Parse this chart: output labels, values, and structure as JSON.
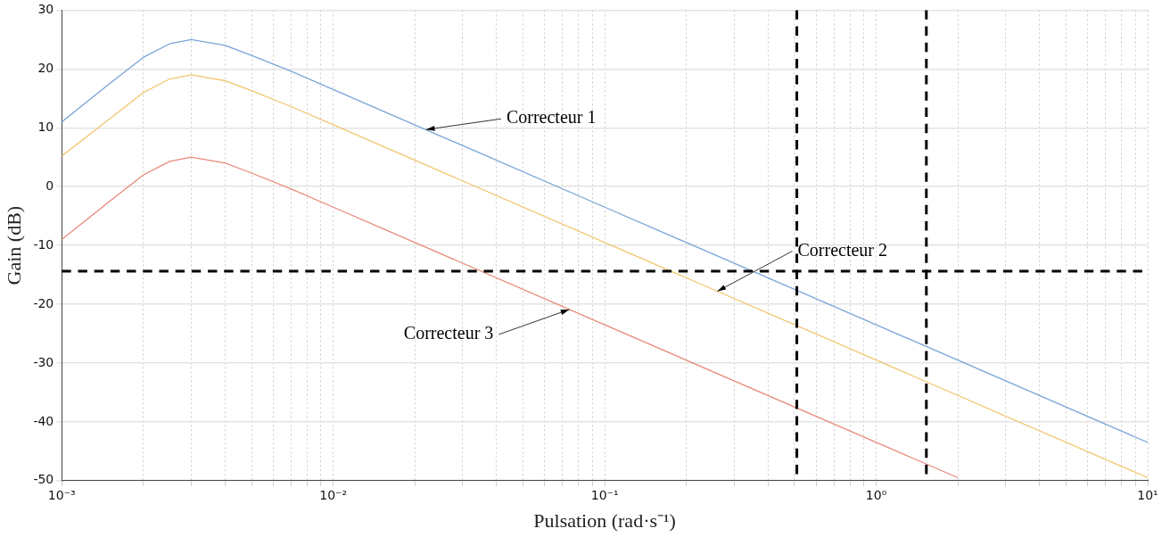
{
  "chart_data": {
    "type": "line",
    "xlabel": "Pulsation (rad·s⁻¹)",
    "ylabel": "Gain (dB)",
    "log": "x",
    "grid": true,
    "legend": false,
    "marker": "none",
    "line_style": "solid",
    "xlim": [
      0.001,
      10
    ],
    "ylim": [
      -50,
      30
    ],
    "xticks": [
      {
        "value": 0.001,
        "label": "10⁻³"
      },
      {
        "value": 0.002,
        "label": null
      },
      {
        "value": 0.003,
        "label": null
      },
      {
        "value": 0.004,
        "label": null
      },
      {
        "value": 0.005,
        "label": null
      },
      {
        "value": 0.006,
        "label": null
      },
      {
        "value": 0.007,
        "label": null
      },
      {
        "value": 0.008,
        "label": null
      },
      {
        "value": 0.009,
        "label": null
      },
      {
        "value": 0.01,
        "label": "10⁻²"
      },
      {
        "value": 0.02,
        "label": null
      },
      {
        "value": 0.03,
        "label": null
      },
      {
        "value": 0.04,
        "label": null
      },
      {
        "value": 0.05,
        "label": null
      },
      {
        "value": 0.06,
        "label": null
      },
      {
        "value": 0.07,
        "label": null
      },
      {
        "value": 0.08,
        "label": null
      },
      {
        "value": 0.09,
        "label": null
      },
      {
        "value": 0.1,
        "label": "10⁻¹"
      },
      {
        "value": 0.2,
        "label": null
      },
      {
        "value": 0.3,
        "label": null
      },
      {
        "value": 0.4,
        "label": null
      },
      {
        "value": 0.5,
        "label": null
      },
      {
        "value": 0.6,
        "label": null
      },
      {
        "value": 0.7,
        "label": null
      },
      {
        "value": 0.8,
        "label": null
      },
      {
        "value": 0.9,
        "label": null
      },
      {
        "value": 1,
        "label": "10⁰"
      },
      {
        "value": 2,
        "label": null
      },
      {
        "value": 3,
        "label": null
      },
      {
        "value": 4,
        "label": null
      },
      {
        "value": 5,
        "label": null
      },
      {
        "value": 6,
        "label": null
      },
      {
        "value": 7,
        "label": null
      },
      {
        "value": 8,
        "label": null
      },
      {
        "value": 9,
        "label": null
      },
      {
        "value": 10,
        "label": "10¹"
      }
    ],
    "yticks": [
      -50,
      -40,
      -30,
      -20,
      -10,
      0,
      10,
      20,
      30
    ],
    "series": [
      {
        "color": "#7aa6d8",
        "x": [
          0.001,
          0.0015,
          0.002,
          0.0025,
          0.003,
          0.004,
          0.005,
          0.007,
          0.01,
          0.1,
          1,
          10
        ],
        "values": [
          11,
          17.5,
          22,
          24.3,
          25,
          24,
          22.3,
          19.6,
          16.5,
          -3.5,
          -23.5,
          -43.5
        ]
      },
      {
        "color": "#f2c66e",
        "x": [
          0.001,
          0.0015,
          0.002,
          0.0025,
          0.003,
          0.004,
          0.005,
          0.007,
          0.01,
          0.1,
          1,
          10
        ],
        "values": [
          5.2,
          11.5,
          16,
          18.3,
          19,
          18,
          16.3,
          13.6,
          10.5,
          -9.5,
          -29.5,
          -49.5
        ]
      },
      {
        "color": "#e8897a",
        "x": [
          0.001,
          0.0015,
          0.002,
          0.0025,
          0.003,
          0.004,
          0.005,
          0.007,
          0.01,
          0.1,
          1,
          2
        ],
        "values": [
          -9,
          -2.5,
          2,
          4.3,
          5,
          4,
          2.3,
          -0.4,
          -3.5,
          -23.5,
          -43.5,
          -49.5
        ]
      }
    ],
    "ref_lines": [
      {
        "axis": "x",
        "value": 0.51,
        "color": "#000000",
        "line_style": "dashed"
      },
      {
        "axis": "x",
        "value": 1.53,
        "color": "#000000",
        "line_style": "dashed"
      },
      {
        "axis": "y",
        "value": -14.4,
        "color": "#000000",
        "line_style": "dashed"
      }
    ],
    "annotations": [
      {
        "text": "Correcteur 1",
        "x": 0.022,
        "y": 9.7
      },
      {
        "text": "Correcteur 2",
        "x": 0.26,
        "y": -17.8
      },
      {
        "text": "Correcteur 3",
        "x": 0.074,
        "y": -20.9
      }
    ]
  }
}
